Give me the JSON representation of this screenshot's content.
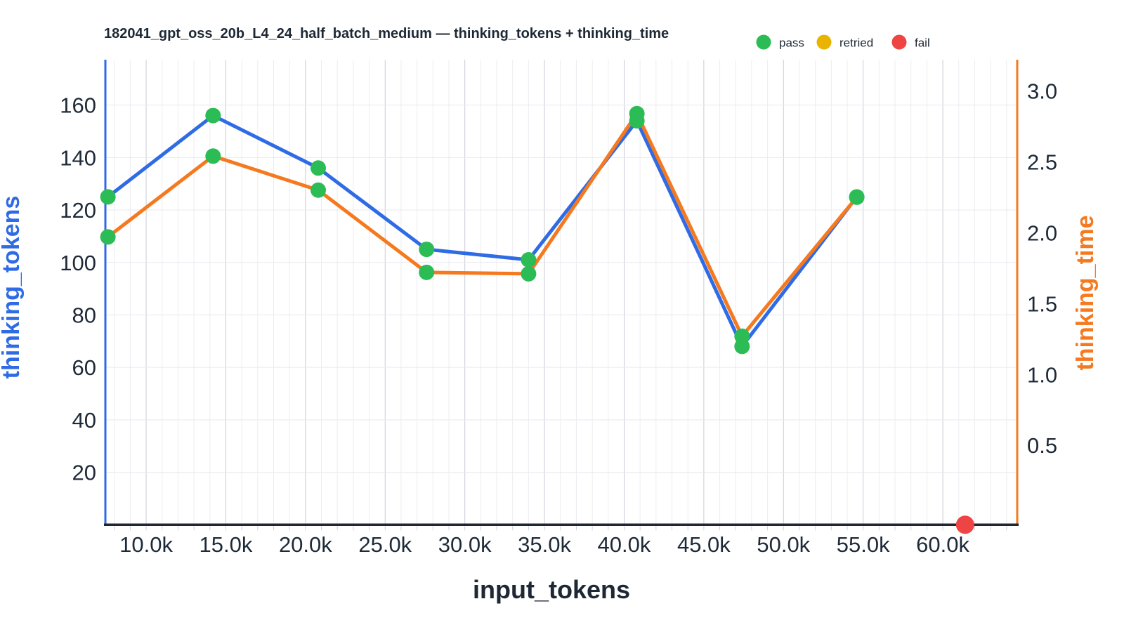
{
  "chart_data": {
    "type": "line",
    "title": "182041_gpt_oss_20b_L4_24_half_batch_medium — thinking_tokens + thinking_time",
    "xlabel": "input_tokens",
    "ylabel_left": "thinking_tokens",
    "ylabel_right": "thinking_time",
    "legend": [
      {
        "label": "pass",
        "color": "#2bbc56"
      },
      {
        "label": "retried",
        "color": "#e8b400"
      },
      {
        "label": "fail",
        "color": "#ee4444"
      }
    ],
    "x_tick_values": [
      10000,
      15000,
      20000,
      25000,
      30000,
      35000,
      40000,
      45000,
      50000,
      55000,
      60000
    ],
    "x_tick_labels": [
      "10.0k",
      "15.0k",
      "20.0k",
      "25.0k",
      "30.0k",
      "35.0k",
      "40.0k",
      "45.0k",
      "50.0k",
      "55.0k",
      "60.0k"
    ],
    "y_left_tick_labels": [
      "20",
      "40",
      "60",
      "80",
      "100",
      "120",
      "140",
      "160"
    ],
    "y_right_tick_labels": [
      "0.5",
      "1.0",
      "1.5",
      "2.0",
      "2.5",
      "3.0"
    ],
    "x_range": [
      7440,
      64670
    ],
    "y_left_range": [
      0,
      177.3
    ],
    "y_right_range": [
      -0.06,
      3.22
    ],
    "grid": {
      "x_minor_step": 1000,
      "x_major_step": 5000,
      "y_left_step": 20
    },
    "series": [
      {
        "name": "thinking_tokens",
        "axis": "left",
        "color": "#2e6be5",
        "marker_status": "pass",
        "marker_color": "#2bbc56",
        "x": [
          7600,
          14200,
          20800,
          27600,
          34000,
          40800,
          47400,
          54600
        ],
        "values": [
          125,
          156,
          136,
          105,
          101,
          154,
          68,
          125
        ]
      },
      {
        "name": "thinking_time",
        "axis": "right",
        "color": "#f5791f",
        "marker_status": "pass",
        "marker_color": "#2bbc56",
        "x": [
          7600,
          14200,
          20800,
          27600,
          34000,
          40800,
          47400,
          54600
        ],
        "values": [
          1.97,
          2.54,
          2.3,
          1.72,
          1.71,
          2.84,
          1.27,
          2.25
        ]
      }
    ],
    "fail_points": [
      {
        "x": 61400,
        "axis": "left",
        "value": 0,
        "status": "fail",
        "color": "#ee4444"
      }
    ],
    "colors": {
      "axis_left": "#2e6be5",
      "axis_right": "#f5791f",
      "axis_bottom": "#1d2834",
      "grid_minor": "#ededf2",
      "grid_major": "#c9ccd8",
      "grid_horizontal": "#e9e9ef",
      "tick_stub": "#cfd2da",
      "background": "#ffffff"
    }
  }
}
